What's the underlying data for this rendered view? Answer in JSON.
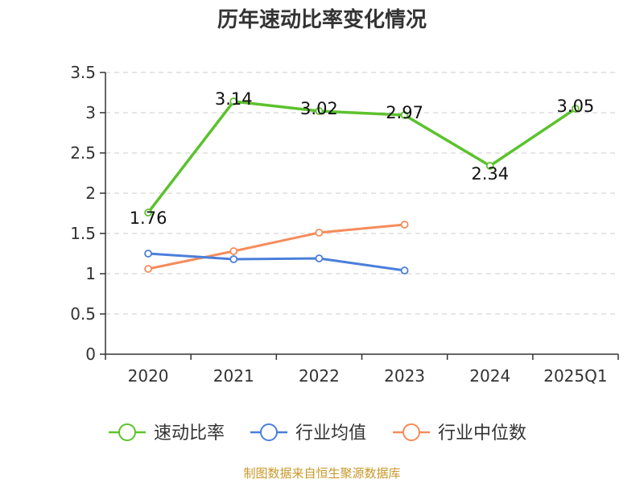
{
  "chart_data": {
    "type": "line",
    "title": "历年速动比率变化情况",
    "categories": [
      "2020",
      "2021",
      "2022",
      "2023",
      "2024",
      "2025Q1"
    ],
    "ylim": [
      0,
      3.5
    ],
    "yticks": [
      "0",
      "0.5",
      "1",
      "1.5",
      "2",
      "2.5",
      "3",
      "3.5"
    ],
    "grid": true,
    "legend_position": "bottom",
    "series": [
      {
        "name": "速动比率",
        "color": "#5cc22d",
        "values": [
          1.76,
          3.14,
          3.02,
          2.97,
          2.34,
          3.05
        ],
        "labels": [
          "1.76",
          "3.14",
          "3.02",
          "2.97",
          "2.34",
          "3.05"
        ]
      },
      {
        "name": "行业均值",
        "color": "#4a7fdc",
        "values": [
          1.25,
          1.18,
          1.19,
          1.04,
          null,
          null
        ]
      },
      {
        "name": "行业中位数",
        "color": "#f58c5b",
        "values": [
          1.06,
          1.28,
          1.51,
          1.61,
          null,
          null
        ]
      }
    ]
  },
  "footer": {
    "source": "制图数据来自恒生聚源数据库"
  }
}
